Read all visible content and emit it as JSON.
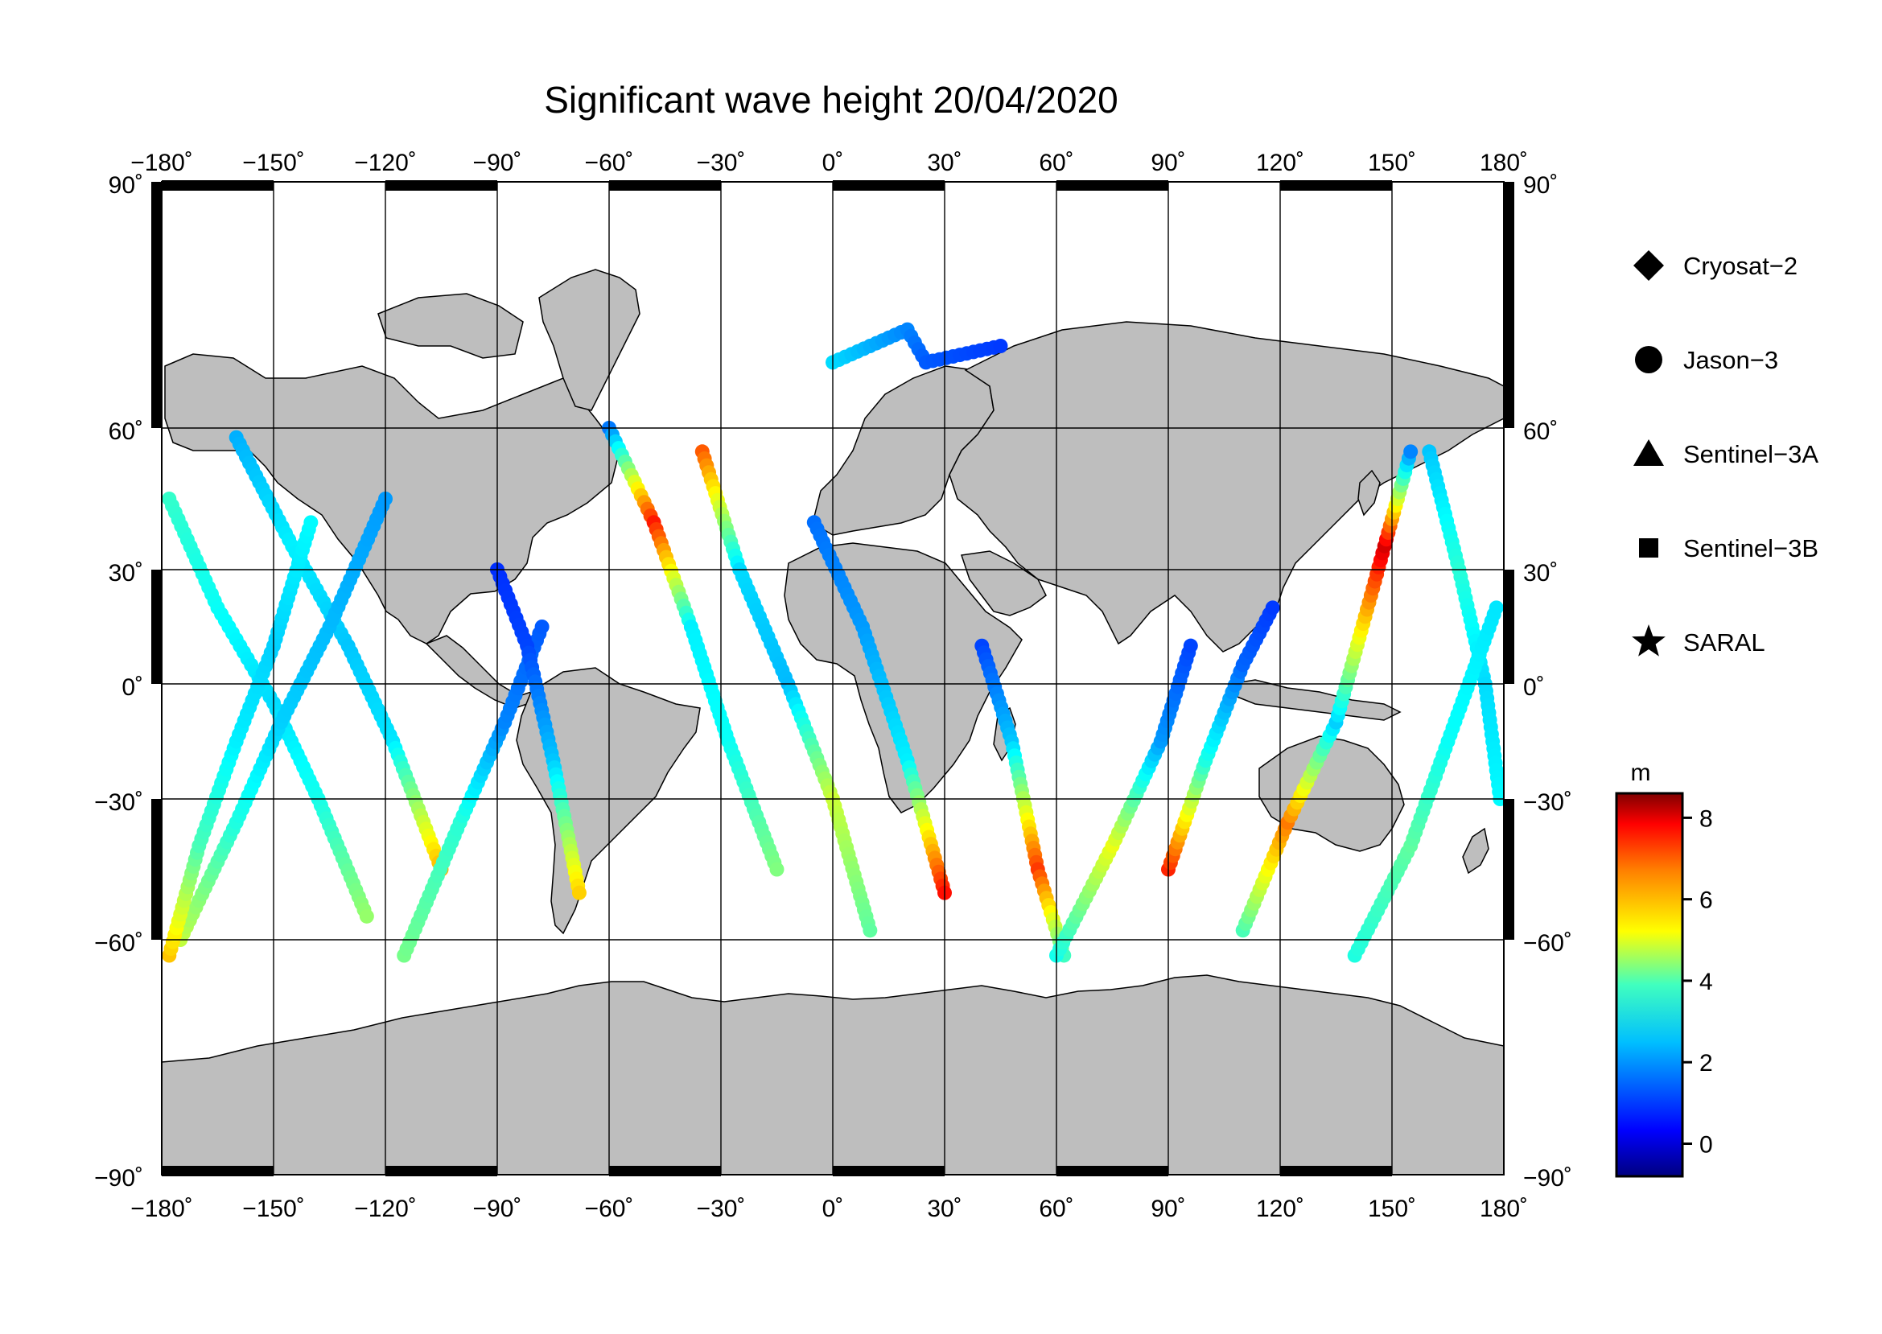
{
  "title": "Significant wave height 20/04/2020",
  "colors": {
    "land": "#bebebe",
    "ocean": "#ffffff",
    "frame": "#000000",
    "grid": "#000000"
  },
  "map": {
    "lon_range": [
      -180,
      180
    ],
    "lat_range": [
      -90,
      90
    ],
    "projection": "Mercator-like",
    "lon_ticks": [
      "−180˚",
      "−150˚",
      "−120˚",
      "−90˚",
      "−60˚",
      "−30˚",
      "0˚",
      "30˚",
      "60˚",
      "90˚",
      "120˚",
      "150˚",
      "180˚"
    ],
    "lat_ticks": [
      "90˚",
      "60˚",
      "30˚",
      "0˚",
      "−30˚",
      "−60˚",
      "−90˚"
    ],
    "grid": true
  },
  "legend": {
    "position": "right",
    "items": [
      {
        "label": "Cryosat−2",
        "icon": "diamond-icon"
      },
      {
        "label": "Jason−3",
        "icon": "circle-icon"
      },
      {
        "label": "Sentinel−3A",
        "icon": "triangle-icon"
      },
      {
        "label": "Sentinel−3B",
        "icon": "square-icon"
      },
      {
        "label": "SARAL",
        "icon": "star-icon"
      }
    ]
  },
  "colorbar": {
    "unit": "m",
    "min": -0.8,
    "max": 8.6,
    "ticks": [
      "0",
      "2",
      "4",
      "6",
      "8"
    ],
    "colormap": "jet"
  },
  "chart_data": {
    "type": "scatter",
    "x_name": "longitude",
    "y_name": "latitude",
    "value_name": "significant wave height (m)",
    "tracks": [
      {
        "points": [
          [
            -178,
            45,
            3.2
          ],
          [
            -165,
            20,
            2.8
          ],
          [
            -150,
            -5,
            2.4
          ],
          [
            -138,
            -30,
            2.9
          ],
          [
            -125,
            -55,
            4.1
          ]
        ]
      },
      {
        "points": [
          [
            -160,
            58,
            2.0
          ],
          [
            -145,
            35,
            2.6
          ],
          [
            -130,
            10,
            2.2
          ],
          [
            -118,
            -15,
            2.5
          ],
          [
            -105,
            -45,
            5.8
          ]
        ]
      },
      {
        "points": [
          [
            -175,
            -60,
            4.5
          ],
          [
            -160,
            -35,
            3.0
          ],
          [
            -148,
            -10,
            2.3
          ],
          [
            -135,
            15,
            2.1
          ],
          [
            -120,
            45,
            1.8
          ]
        ]
      },
      {
        "points": [
          [
            -115,
            -62,
            3.8
          ],
          [
            -100,
            -35,
            3.1
          ],
          [
            -88,
            -10,
            1.6
          ],
          [
            -78,
            15,
            1.2
          ]
        ]
      },
      {
        "points": [
          [
            -90,
            30,
            0.8
          ],
          [
            -82,
            10,
            1.0
          ],
          [
            -75,
            -20,
            2.2
          ],
          [
            -68,
            -50,
            5.5
          ]
        ]
      },
      {
        "points": [
          [
            -60,
            60,
            1.5
          ],
          [
            -48,
            40,
            7.2
          ],
          [
            -38,
            15,
            2.6
          ],
          [
            -28,
            -15,
            2.8
          ],
          [
            -15,
            -45,
            3.9
          ]
        ]
      },
      {
        "points": [
          [
            -35,
            55,
            6.6
          ],
          [
            -25,
            30,
            2.4
          ],
          [
            -12,
            0,
            2.1
          ],
          [
            0,
            -30,
            4.6
          ],
          [
            10,
            -58,
            3.6
          ]
        ]
      },
      {
        "points": [
          [
            -5,
            40,
            1.4
          ],
          [
            8,
            15,
            1.8
          ],
          [
            20,
            -20,
            2.6
          ],
          [
            30,
            -50,
            7.3
          ]
        ]
      },
      {
        "points": [
          [
            40,
            10,
            1.0
          ],
          [
            48,
            -15,
            2.2
          ],
          [
            55,
            -45,
            6.9
          ],
          [
            62,
            -62,
            3.3
          ]
        ]
      },
      {
        "points": [
          [
            60,
            -62,
            2.9
          ],
          [
            75,
            -40,
            4.9
          ],
          [
            88,
            -15,
            1.8
          ],
          [
            96,
            10,
            1.0
          ]
        ]
      },
      {
        "points": [
          [
            90,
            -45,
            7.1
          ],
          [
            100,
            -20,
            3.0
          ],
          [
            110,
            5,
            1.3
          ],
          [
            118,
            20,
            0.9
          ]
        ]
      },
      {
        "points": [
          [
            110,
            -58,
            3.4
          ],
          [
            122,
            -35,
            6.3
          ],
          [
            135,
            -10,
            2.3
          ],
          [
            148,
            35,
            7.8
          ],
          [
            155,
            55,
            1.6
          ]
        ]
      },
      {
        "points": [
          [
            160,
            55,
            2.2
          ],
          [
            168,
            30,
            3.1
          ],
          [
            175,
            0,
            2.4
          ],
          [
            179,
            -30,
            2.7
          ]
        ]
      },
      {
        "points": [
          [
            140,
            -62,
            3.0
          ],
          [
            155,
            -40,
            3.6
          ],
          [
            165,
            -15,
            2.8
          ],
          [
            178,
            20,
            2.5
          ]
        ]
      },
      {
        "points": [
          [
            -178,
            -62,
            5.6
          ],
          [
            -170,
            -40,
            3.4
          ],
          [
            -160,
            -15,
            2.6
          ],
          [
            -150,
            10,
            2.3
          ],
          [
            -140,
            40,
            2.7
          ]
        ]
      },
      {
        "points": [
          [
            0,
            68,
            2.4
          ],
          [
            10,
            70,
            2.0
          ],
          [
            20,
            72,
            1.6
          ],
          [
            25,
            68,
            1.2
          ],
          [
            45,
            70,
            0.9
          ]
        ]
      }
    ]
  }
}
